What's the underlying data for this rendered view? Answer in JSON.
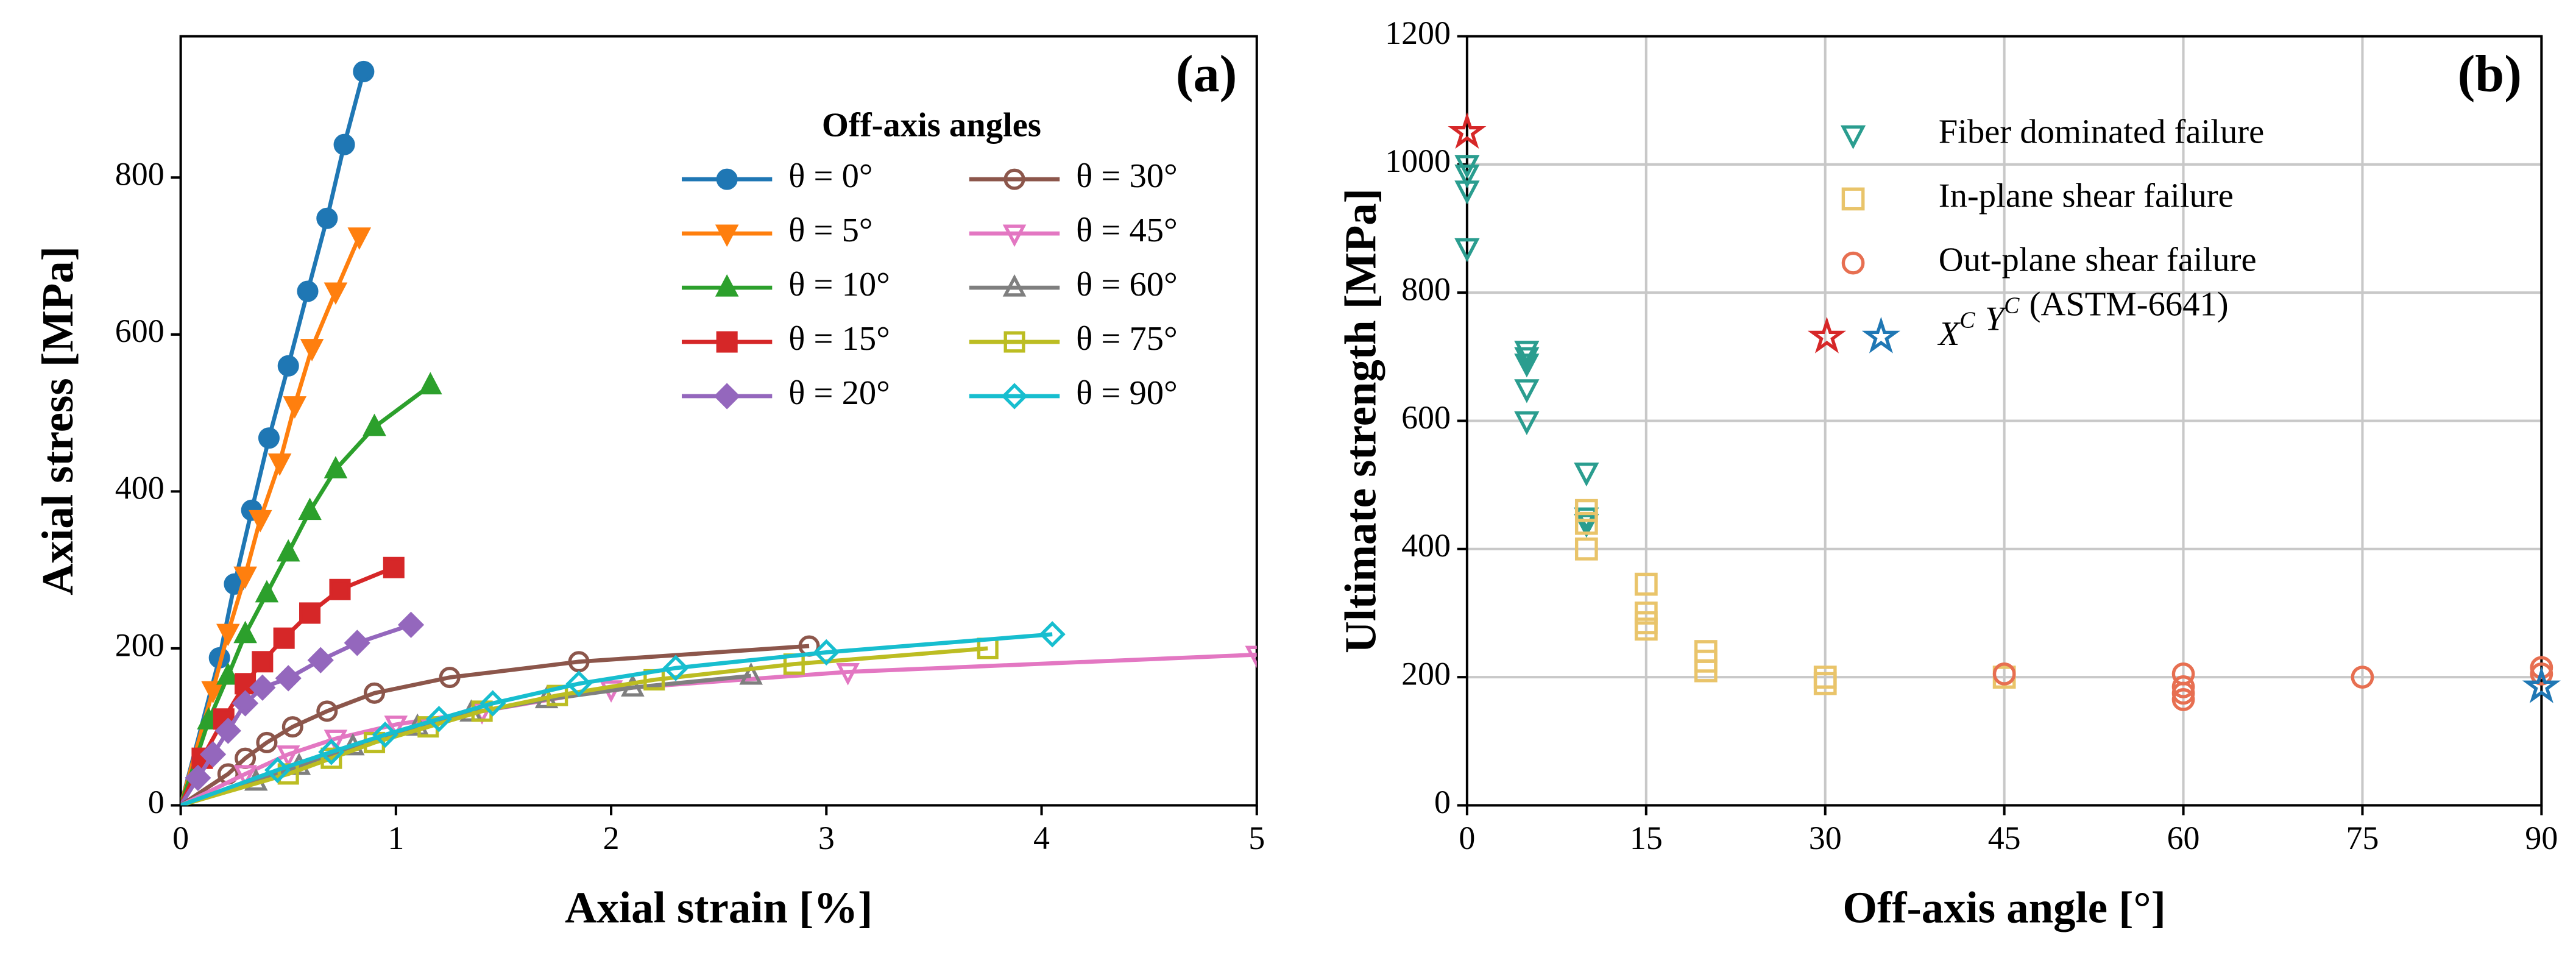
{
  "chart_data": [
    {
      "type": "line",
      "panel_label": "(a)",
      "x_label": "Axial strain [%]",
      "y_label": "Axial stress [MPa]",
      "xlim": [
        0,
        5
      ],
      "xticks": [
        0,
        1,
        2,
        3,
        4,
        5
      ],
      "ylim": [
        0,
        980
      ],
      "yticks": [
        0,
        200,
        400,
        600,
        800
      ],
      "legend_title": "Off-axis angles",
      "legend": "upper right",
      "series": [
        {
          "name": "θ = 0°",
          "color": "#1f77b4",
          "marker": "o",
          "filled": true,
          "x": [
            0,
            0.18,
            0.25,
            0.33,
            0.41,
            0.5,
            0.59,
            0.68,
            0.76,
            0.85
          ],
          "values": [
            0,
            188,
            282,
            376,
            468,
            560,
            655,
            748,
            842,
            935
          ]
        },
        {
          "name": "θ = 5°",
          "color": "#ff7f0e",
          "marker": "v",
          "filled": true,
          "x": [
            0,
            0.15,
            0.22,
            0.3,
            0.37,
            0.46,
            0.53,
            0.61,
            0.72,
            0.83
          ],
          "values": [
            0,
            147,
            220,
            293,
            365,
            437,
            510,
            583,
            655,
            725
          ]
        },
        {
          "name": "θ = 10°",
          "color": "#2ca02c",
          "marker": "^",
          "filled": true,
          "x": [
            0,
            0.13,
            0.22,
            0.3,
            0.4,
            0.5,
            0.6,
            0.72,
            0.9,
            1.16
          ],
          "values": [
            0,
            108,
            165,
            218,
            270,
            322,
            375,
            428,
            482,
            535
          ]
        },
        {
          "name": "θ = 15°",
          "color": "#d62728",
          "marker": "s",
          "filled": true,
          "x": [
            0,
            0.1,
            0.2,
            0.3,
            0.38,
            0.48,
            0.6,
            0.74,
            0.99
          ],
          "values": [
            0,
            60,
            110,
            155,
            183,
            213,
            245,
            275,
            303
          ]
        },
        {
          "name": "θ = 20°",
          "color": "#9467bd",
          "marker": "D",
          "filled": true,
          "x": [
            0,
            0.08,
            0.15,
            0.22,
            0.3,
            0.38,
            0.5,
            0.65,
            0.82,
            1.07
          ],
          "values": [
            0,
            35,
            65,
            95,
            130,
            150,
            162,
            185,
            207,
            230
          ]
        },
        {
          "name": "θ = 30°",
          "color": "#8c564b",
          "marker": "o",
          "filled": false,
          "x": [
            0,
            0.22,
            0.3,
            0.4,
            0.52,
            0.68,
            0.9,
            1.25,
            1.85,
            2.92
          ],
          "values": [
            0,
            40,
            60,
            80,
            100,
            120,
            143,
            163,
            183,
            203
          ]
        },
        {
          "name": "θ = 45°",
          "color": "#e377c2",
          "marker": "v",
          "filled": false,
          "x": [
            0,
            0.3,
            0.5,
            0.72,
            1.0,
            1.4,
            2.0,
            3.1,
            5.0
          ],
          "values": [
            0,
            40,
            65,
            85,
            103,
            120,
            148,
            170,
            192
          ]
        },
        {
          "name": "θ = 60°",
          "color": "#7f7f7f",
          "marker": "^",
          "filled": false,
          "x": [
            0,
            0.35,
            0.55,
            0.8,
            1.1,
            1.35,
            1.7,
            2.1,
            2.65
          ],
          "values": [
            0,
            30,
            50,
            75,
            100,
            118,
            135,
            150,
            165
          ]
        },
        {
          "name": "θ = 75°",
          "color": "#bcbd22",
          "marker": "s",
          "filled": false,
          "x": [
            0,
            0.5,
            0.7,
            0.9,
            1.15,
            1.4,
            1.75,
            2.2,
            2.85,
            3.75
          ],
          "values": [
            0,
            40,
            60,
            80,
            100,
            120,
            140,
            160,
            180,
            200
          ]
        },
        {
          "name": "θ = 90°",
          "color": "#17becf",
          "marker": "D",
          "filled": false,
          "x": [
            0,
            0.45,
            0.7,
            0.95,
            1.2,
            1.45,
            1.85,
            2.3,
            3.0,
            4.05
          ],
          "values": [
            0,
            45,
            68,
            90,
            110,
            130,
            155,
            175,
            195,
            218
          ]
        }
      ]
    },
    {
      "type": "scatter",
      "panel_label": "(b)",
      "x_label": "Off-axis angle [°]",
      "y_label": "Ultimate strength [MPa]",
      "xlim": [
        0,
        90
      ],
      "xticks": [
        0,
        15,
        30,
        45,
        60,
        75,
        90
      ],
      "ylim": [
        0,
        1200
      ],
      "yticks": [
        0,
        200,
        400,
        600,
        800,
        1000,
        1200
      ],
      "grid": true,
      "legend": "upper center",
      "series": [
        {
          "name": "Fiber dominated failure",
          "color": "#2a9d8f",
          "marker": "v",
          "filled": false,
          "x": [
            0,
            0,
            0,
            0,
            5,
            5,
            5,
            5,
            5,
            10,
            10,
            10
          ],
          "values": [
            1000,
            985,
            960,
            870,
            710,
            700,
            690,
            650,
            600,
            520,
            450,
            440
          ]
        },
        {
          "name": "In-plane shear failure",
          "color": "#e9c46a",
          "marker": "s",
          "filled": false,
          "x": [
            10,
            10,
            10,
            15,
            15,
            15,
            15,
            20,
            20,
            20,
            30,
            30,
            45
          ],
          "values": [
            460,
            440,
            400,
            345,
            300,
            285,
            275,
            240,
            225,
            210,
            200,
            190,
            200
          ]
        },
        {
          "name": "Out-plane shear failure",
          "color": "#e76f51",
          "marker": "o",
          "filled": false,
          "x": [
            45,
            60,
            60,
            60,
            60,
            75,
            90,
            90
          ],
          "values": [
            205,
            205,
            185,
            175,
            165,
            200,
            215,
            205
          ]
        },
        {
          "name": "X",
          "sup": "C",
          "color": "#d62728",
          "marker": "*",
          "filled": false,
          "x": [
            0
          ],
          "values": [
            1050
          ]
        },
        {
          "name": "Y",
          "sup": "C",
          "color": "#1f77b4",
          "marker": "*",
          "filled": false,
          "x": [
            90
          ],
          "values": [
            185
          ]
        }
      ],
      "legend_suffix": "(ASTM-6641)"
    }
  ]
}
